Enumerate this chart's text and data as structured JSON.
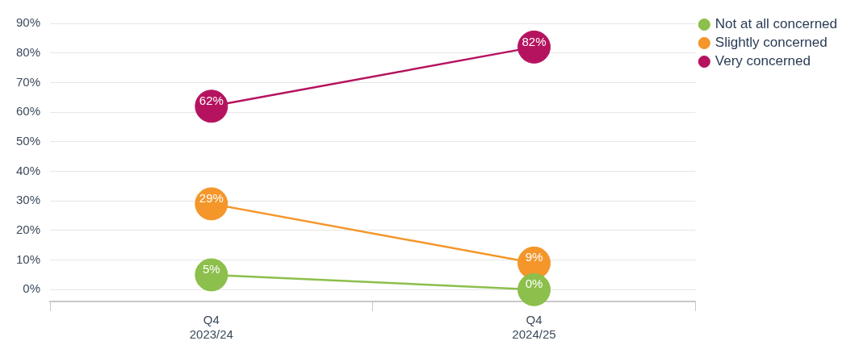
{
  "chart_data": {
    "type": "line",
    "categories": [
      "Q4\n2023/24",
      "Q4\n2024/25"
    ],
    "series": [
      {
        "name": "Not at all concerned",
        "color": "#8cbf4b",
        "values": [
          5,
          0
        ],
        "value_labels": [
          "5%",
          "0%"
        ]
      },
      {
        "name": "Slightly concerned",
        "color": "#f4962a",
        "values": [
          29,
          9
        ],
        "value_labels": [
          "29%",
          "9%"
        ]
      },
      {
        "name": "Very concerned",
        "color": "#b5135f",
        "values": [
          62,
          82
        ],
        "value_labels": [
          "62%",
          "82%"
        ]
      }
    ],
    "ylim": [
      -4,
      90
    ],
    "yticks": [
      {
        "value": 0,
        "label": "0%"
      },
      {
        "value": 10,
        "label": "10%"
      },
      {
        "value": 20,
        "label": "20%"
      },
      {
        "value": 30,
        "label": "30%"
      },
      {
        "value": 40,
        "label": "40%"
      },
      {
        "value": 50,
        "label": "50%"
      },
      {
        "value": 60,
        "label": "60%"
      },
      {
        "value": 70,
        "label": "70%"
      },
      {
        "value": 80,
        "label": "80%"
      },
      {
        "value": 90,
        "label": "90%"
      }
    ],
    "grid": "y",
    "legend": "top right",
    "marker": "circle",
    "line_style": "solid"
  }
}
